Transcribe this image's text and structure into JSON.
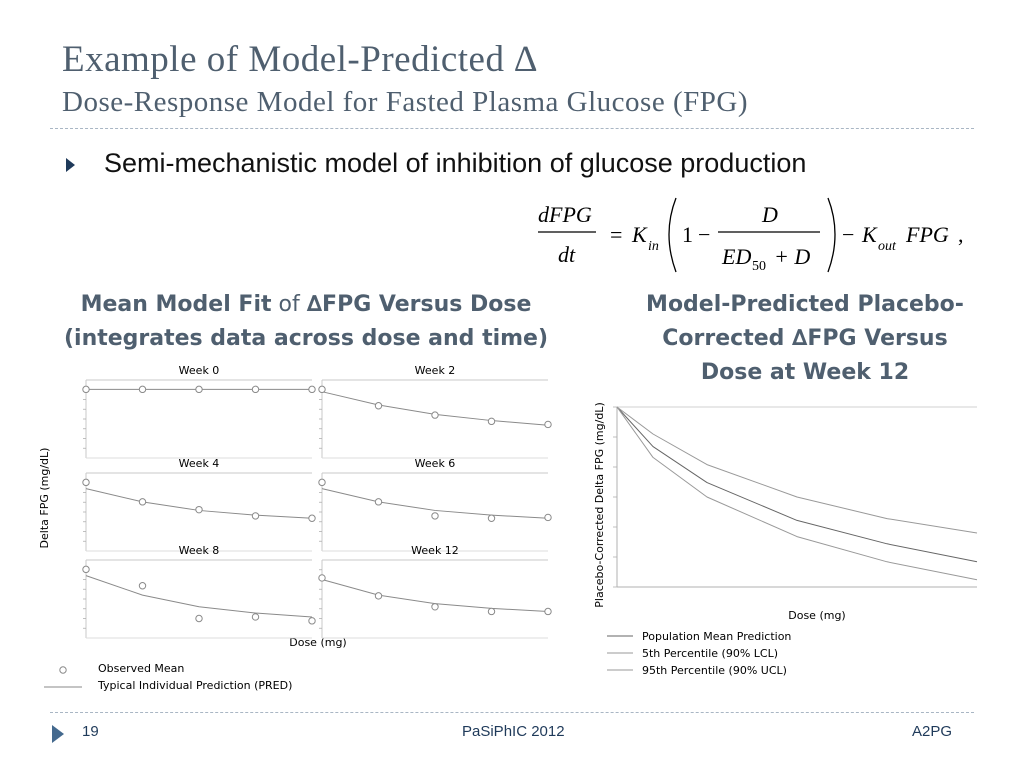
{
  "slide": {
    "title_line1": "Example of Model-Predicted ∆",
    "title_line2": "Dose-Response Model for Fasted Plasma Glucose (FPG)",
    "bullet": "Semi-mechanistic model of inhibition of glucose production",
    "equation": {
      "lhs_num": "dFPG",
      "lhs_den": "dt",
      "k_in": "K",
      "k_in_sub": "in",
      "one": "1",
      "frac_num": "D",
      "frac_den_a": "ED",
      "frac_den_sub": "50",
      "frac_den_b": "+ D",
      "k_out": "K",
      "k_out_sub": "out",
      "fpg": "FPG",
      "equals": "=",
      "minus1": "−",
      "minus2": "−",
      "comma": ","
    },
    "left_heading": {
      "part1": "Mean Model Fit",
      "part2": " of ",
      "part3": "∆FPG Versus Dose",
      "line2": "(integrates data across dose and time)"
    },
    "right_heading": {
      "line1": "Model-Predicted Placebo-",
      "line2": "Corrected ∆FPG Versus",
      "line3": "Dose at Week 12"
    },
    "footer": {
      "page": "19",
      "center": "PaSiPhIC 2012",
      "right": "A2PG"
    },
    "colors": {
      "title": "#4f5f6f",
      "accent": "#1f3a5a",
      "rule": "#a9b6c4",
      "plot_line": "#8a8a8a"
    }
  },
  "chart_data": [
    {
      "type": "line",
      "facets": [
        "Week 0",
        "Week 2",
        "Week 4",
        "Week 6",
        "Week 8",
        "Week 12"
      ],
      "xlabel": "Dose (mg)",
      "ylabel": "Delta FPG (mg/dL)",
      "legend": {
        "observed": "Observed Mean",
        "pred": "Typical Individual Prediction (PRED)"
      },
      "x": [
        0,
        1,
        2,
        3,
        4
      ],
      "panels": [
        {
          "observed": [
            0.12,
            0.12,
            0.12,
            0.12,
            0.12
          ],
          "pred": [
            0.12,
            0.12,
            0.12,
            0.12,
            0.12
          ]
        },
        {
          "observed": [
            0.12,
            0.33,
            0.45,
            0.53,
            0.57
          ],
          "pred": [
            0.15,
            0.32,
            0.44,
            0.52,
            0.58
          ]
        },
        {
          "observed": [
            0.12,
            0.37,
            0.47,
            0.55,
            0.58
          ],
          "pred": [
            0.2,
            0.37,
            0.48,
            0.54,
            0.58
          ]
        },
        {
          "observed": [
            0.12,
            0.37,
            0.55,
            0.58,
            0.57
          ],
          "pred": [
            0.2,
            0.37,
            0.48,
            0.54,
            0.58
          ]
        },
        {
          "observed": [
            0.12,
            0.33,
            0.75,
            0.73,
            0.78
          ],
          "pred": [
            0.2,
            0.45,
            0.6,
            0.68,
            0.73
          ]
        },
        {
          "observed": [
            0.23,
            0.46,
            0.6,
            0.66,
            0.66
          ],
          "pred": [
            0.25,
            0.45,
            0.56,
            0.62,
            0.66
          ]
        }
      ]
    },
    {
      "type": "line",
      "xlabel": "Dose (mg)",
      "ylabel": "Placebo-Corrected Delta FPG (mg/dL)",
      "x": [
        0,
        0.1,
        0.25,
        0.5,
        0.75,
        1.0
      ],
      "series": [
        {
          "name": "Population Mean Prediction",
          "values": [
            0,
            0.22,
            0.42,
            0.63,
            0.76,
            0.86
          ]
        },
        {
          "name": "5th Percentile (90% LCL)",
          "values": [
            0,
            0.28,
            0.5,
            0.72,
            0.86,
            0.96
          ]
        },
        {
          "name": "95th Percentile (90% UCL)",
          "values": [
            0,
            0.15,
            0.32,
            0.5,
            0.62,
            0.7
          ]
        }
      ]
    }
  ]
}
